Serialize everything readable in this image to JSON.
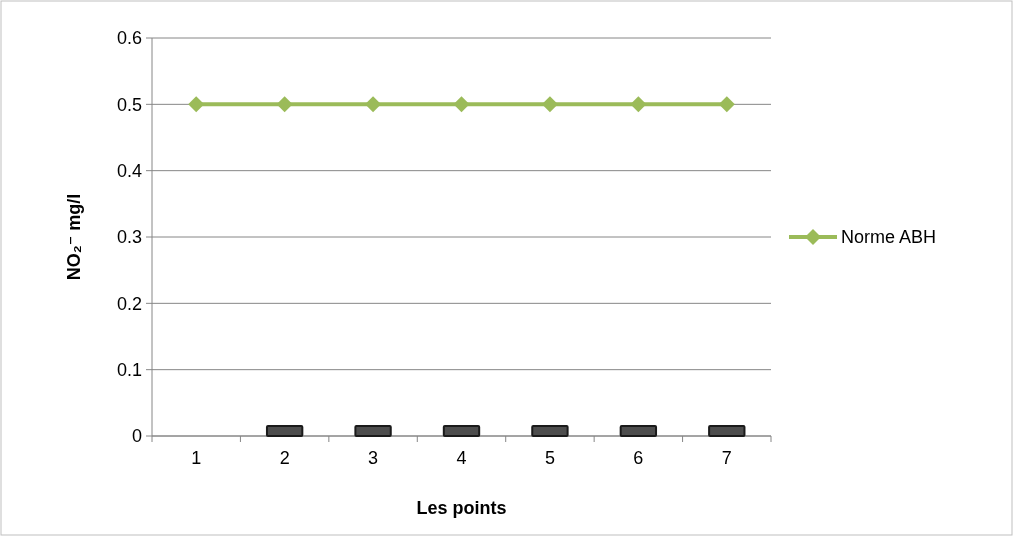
{
  "chart_data": {
    "type": "bar",
    "xlabel": "Les points",
    "ylabel": "NO₂⁻ mg/l",
    "categories": [
      "1",
      "2",
      "3",
      "4",
      "5",
      "6",
      "7"
    ],
    "series": [
      {
        "color": "#4d4d4d",
        "values": [
          null,
          0.015,
          0.015,
          0.015,
          0.015,
          0.015,
          0.015
        ]
      },
      {
        "type": "line",
        "name": "Norme ABH",
        "color": "#9bbb59",
        "values": [
          0.5,
          0.5,
          0.5,
          0.5,
          0.5,
          0.5,
          0.5
        ]
      }
    ],
    "ylim": [
      0,
      0.6
    ],
    "yticks": [
      0,
      0.1,
      0.2,
      0.3,
      0.4,
      0.5,
      0.6
    ],
    "grid": "y",
    "legend": "right",
    "marker": "diamond",
    "line_style": "solid"
  }
}
